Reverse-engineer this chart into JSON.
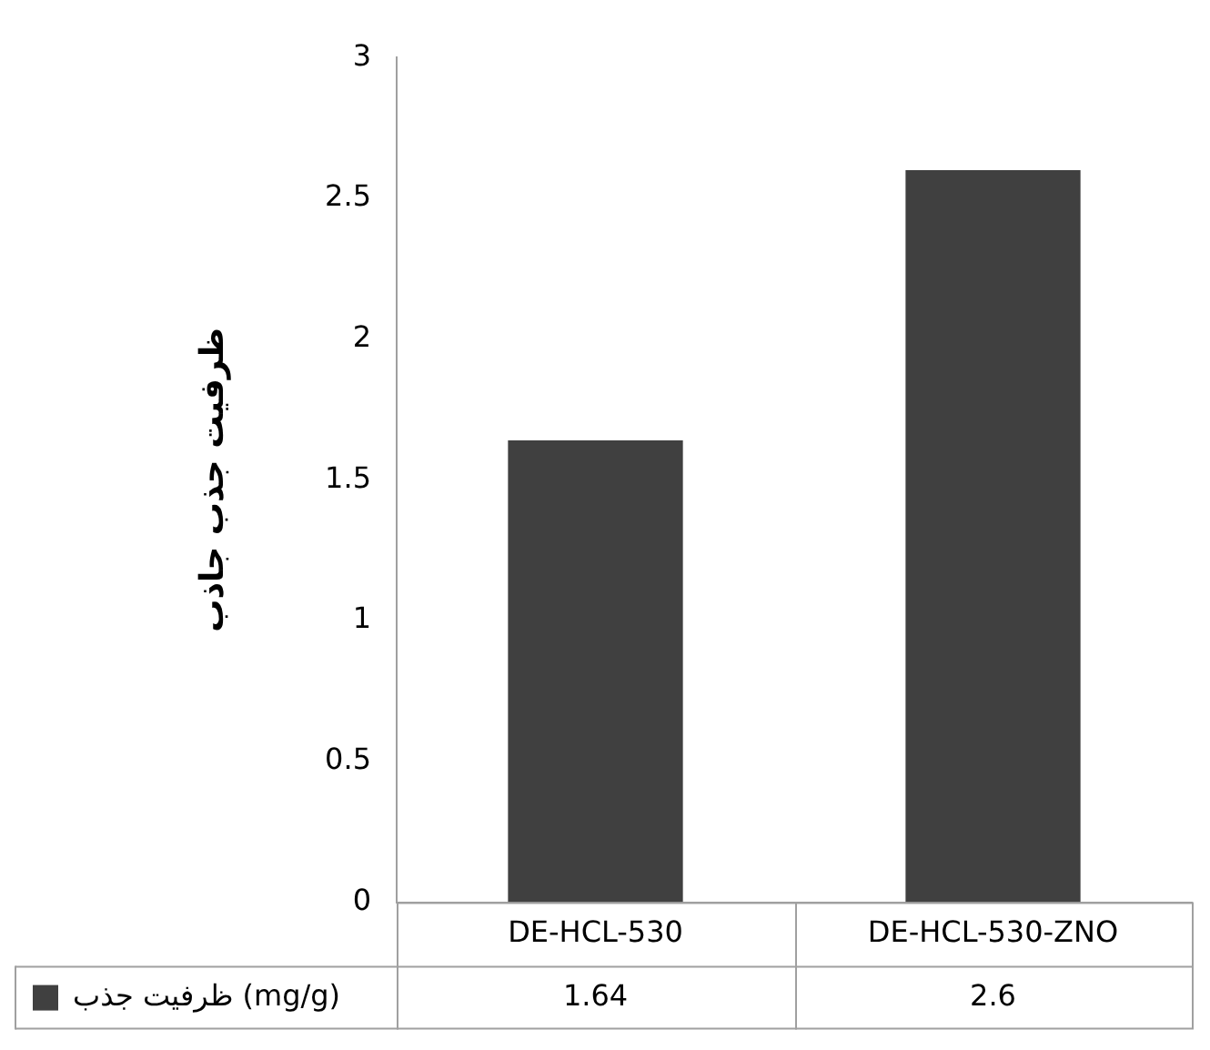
{
  "chart_data": {
    "type": "bar",
    "ylabel": "ظرفیت جذب جاذب",
    "categories": [
      "DE-HCL-530",
      "DE-HCL-530-ZNO"
    ],
    "series": [
      {
        "name": "ظرفیت جذب (mg/g)",
        "color": "#404040",
        "values": [
          1.64,
          2.6
        ]
      }
    ],
    "ylim": [
      0,
      3
    ],
    "yticks": [
      0,
      0.5,
      1,
      1.5,
      2,
      2.5,
      3
    ],
    "grid": false,
    "legend": "bottom",
    "data_labels": true
  }
}
